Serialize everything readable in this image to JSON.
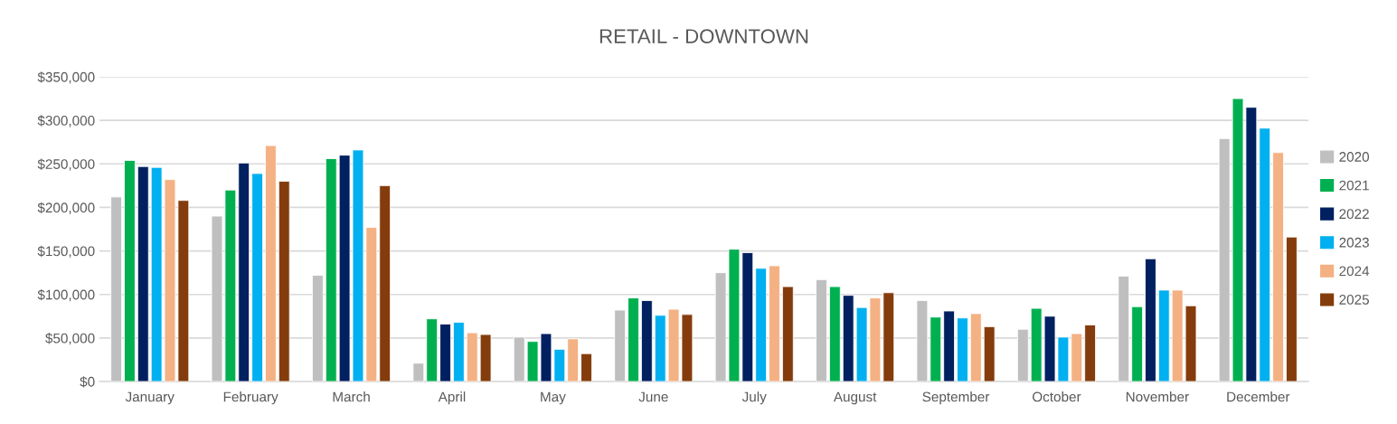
{
  "chart_data": {
    "type": "bar",
    "title": "RETAIL - DOWNTOWN",
    "categories": [
      "January",
      "February",
      "March",
      "April",
      "May",
      "June",
      "July",
      "August",
      "September",
      "October",
      "November",
      "December"
    ],
    "series": [
      {
        "name": "2020",
        "color": "#bfbfbf",
        "values": [
          212000,
          190000,
          122000,
          21000,
          51000,
          82000,
          125000,
          117000,
          93000,
          60000,
          121000,
          279000
        ]
      },
      {
        "name": "2021",
        "color": "#00b050",
        "values": [
          254000,
          220000,
          256000,
          72000,
          46000,
          96000,
          152000,
          109000,
          74000,
          84000,
          86000,
          325000
        ]
      },
      {
        "name": "2022",
        "color": "#002060",
        "values": [
          247000,
          251000,
          260000,
          66000,
          55000,
          93000,
          148000,
          99000,
          81000,
          75000,
          141000,
          315000
        ]
      },
      {
        "name": "2023",
        "color": "#00b0f0",
        "values": [
          246000,
          239000,
          266000,
          68000,
          37000,
          76000,
          130000,
          85000,
          73000,
          51000,
          105000,
          291000
        ]
      },
      {
        "name": "2024",
        "color": "#f4b183",
        "values": [
          232000,
          271000,
          177000,
          56000,
          49000,
          83000,
          133000,
          96000,
          78000,
          55000,
          105000,
          263000
        ]
      },
      {
        "name": "2025",
        "color": "#843c0c",
        "values": [
          208000,
          230000,
          225000,
          54000,
          32000,
          77000,
          109000,
          102000,
          63000,
          65000,
          87000,
          166000
        ]
      }
    ],
    "ylim": [
      0,
      350000
    ],
    "yticks": [
      {
        "value": 0,
        "label": "$0"
      },
      {
        "value": 50000,
        "label": "$50,000"
      },
      {
        "value": 100000,
        "label": "$100,000"
      },
      {
        "value": 150000,
        "label": "$150,000"
      },
      {
        "value": 200000,
        "label": "$200,000"
      },
      {
        "value": 250000,
        "label": "$250,000"
      },
      {
        "value": 300000,
        "label": "$300,000"
      },
      {
        "value": 350000,
        "label": "$350,000"
      }
    ],
    "grid": "y",
    "legend": "right"
  }
}
